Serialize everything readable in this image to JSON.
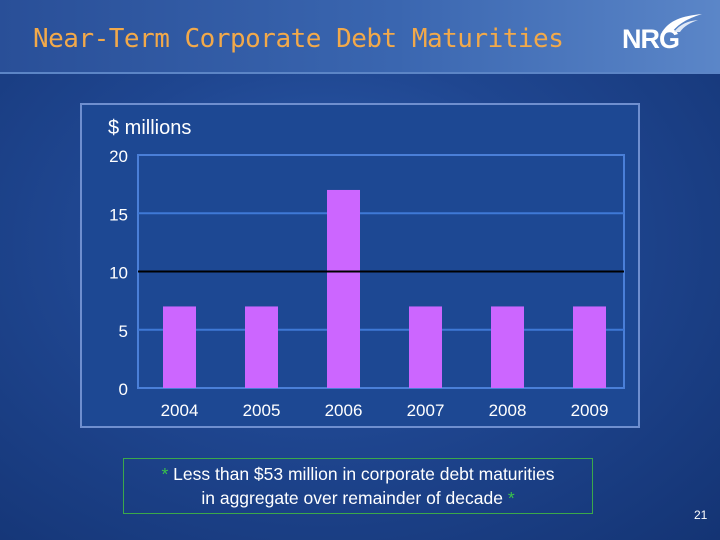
{
  "slide": {
    "title": "Near-Term Corporate Debt Maturities",
    "logo_text": "NRG",
    "unit_label": "$ millions",
    "note": {
      "star": "*",
      "line1": "Less than $53 million in corporate debt maturities",
      "line2": "in aggregate over remainder of decade"
    },
    "page_number": "21"
  },
  "colors": {
    "title": "#f2a94a",
    "bar": "#cc66ff",
    "gridline": "#3f79d6",
    "reference_line": "#000000",
    "note_star": "#39c24a",
    "note_border": "#3ba84a"
  },
  "chart_data": {
    "type": "bar",
    "categories": [
      "2004",
      "2005",
      "2006",
      "2007",
      "2008",
      "2009"
    ],
    "values": [
      7,
      7,
      17,
      7,
      7,
      7
    ],
    "title": "",
    "xlabel": "",
    "ylabel": "$ millions",
    "ylim": [
      0,
      20
    ],
    "yticks": [
      0,
      5,
      10,
      15,
      20
    ],
    "reference_line": 10,
    "grid": true,
    "legend": "none"
  }
}
